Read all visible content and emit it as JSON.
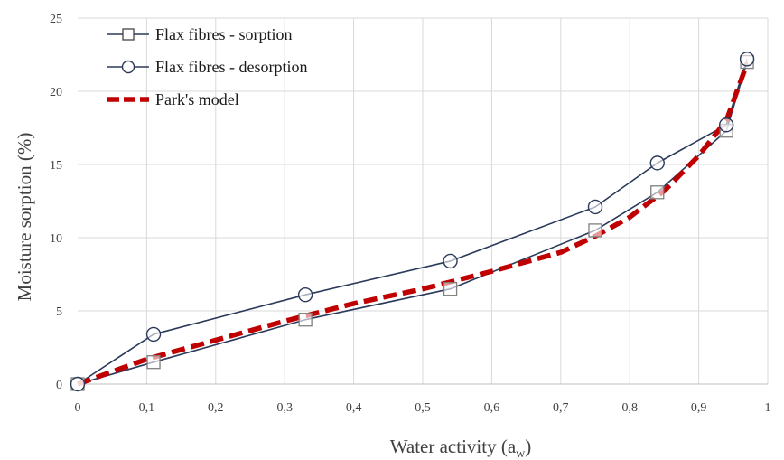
{
  "chart_data": {
    "type": "line",
    "xlabel": "Water activity (a",
    "xlabel_sub": "w",
    "xlabel_close": ")",
    "ylabel": "Moisture sorption (%)",
    "xlim": [
      0,
      1
    ],
    "ylim": [
      0,
      25
    ],
    "x_ticks": [
      {
        "v": 0,
        "label": "0"
      },
      {
        "v": 0.1,
        "label": "0,1"
      },
      {
        "v": 0.2,
        "label": "0,2"
      },
      {
        "v": 0.3,
        "label": "0,3"
      },
      {
        "v": 0.4,
        "label": "0,4"
      },
      {
        "v": 0.5,
        "label": "0,5"
      },
      {
        "v": 0.6,
        "label": "0,6"
      },
      {
        "v": 0.7,
        "label": "0,7"
      },
      {
        "v": 0.8,
        "label": "0,8"
      },
      {
        "v": 0.9,
        "label": "0,9"
      },
      {
        "v": 1,
        "label": "1"
      }
    ],
    "y_ticks": [
      {
        "v": 0,
        "label": "0"
      },
      {
        "v": 5,
        "label": "5"
      },
      {
        "v": 10,
        "label": "10"
      },
      {
        "v": 15,
        "label": "15"
      },
      {
        "v": 20,
        "label": "20"
      },
      {
        "v": 25,
        "label": "25"
      }
    ],
    "grid": true,
    "legend_position": "top-left",
    "series": [
      {
        "name": "Flax fibres - sorption",
        "marker": "square",
        "color": "#2b3a5a",
        "points": [
          {
            "x": 0,
            "y": 0
          },
          {
            "x": 0.11,
            "y": 1.5
          },
          {
            "x": 0.33,
            "y": 4.4
          },
          {
            "x": 0.54,
            "y": 6.5
          },
          {
            "x": 0.75,
            "y": 10.5
          },
          {
            "x": 0.84,
            "y": 13.1
          },
          {
            "x": 0.94,
            "y": 17.3
          },
          {
            "x": 0.97,
            "y": 22.0
          }
        ]
      },
      {
        "name": "Flax fibres - desorption",
        "marker": "circle",
        "color": "#2b3a5a",
        "points": [
          {
            "x": 0,
            "y": 0
          },
          {
            "x": 0.11,
            "y": 3.4
          },
          {
            "x": 0.33,
            "y": 6.1
          },
          {
            "x": 0.54,
            "y": 8.4
          },
          {
            "x": 0.75,
            "y": 12.1
          },
          {
            "x": 0.84,
            "y": 15.1
          },
          {
            "x": 0.94,
            "y": 17.7
          },
          {
            "x": 0.97,
            "y": 22.2
          }
        ]
      },
      {
        "name": "Park's model",
        "marker": "none",
        "dashed": true,
        "color": "#c00000",
        "points": [
          {
            "x": 0,
            "y": 0
          },
          {
            "x": 0.1,
            "y": 1.7
          },
          {
            "x": 0.2,
            "y": 3.0
          },
          {
            "x": 0.3,
            "y": 4.3
          },
          {
            "x": 0.4,
            "y": 5.5
          },
          {
            "x": 0.5,
            "y": 6.5
          },
          {
            "x": 0.6,
            "y": 7.7
          },
          {
            "x": 0.7,
            "y": 9.0
          },
          {
            "x": 0.75,
            "y": 10.1
          },
          {
            "x": 0.8,
            "y": 11.4
          },
          {
            "x": 0.85,
            "y": 13.2
          },
          {
            "x": 0.9,
            "y": 15.6
          },
          {
            "x": 0.94,
            "y": 18.0
          },
          {
            "x": 0.97,
            "y": 21.9
          }
        ]
      }
    ]
  }
}
